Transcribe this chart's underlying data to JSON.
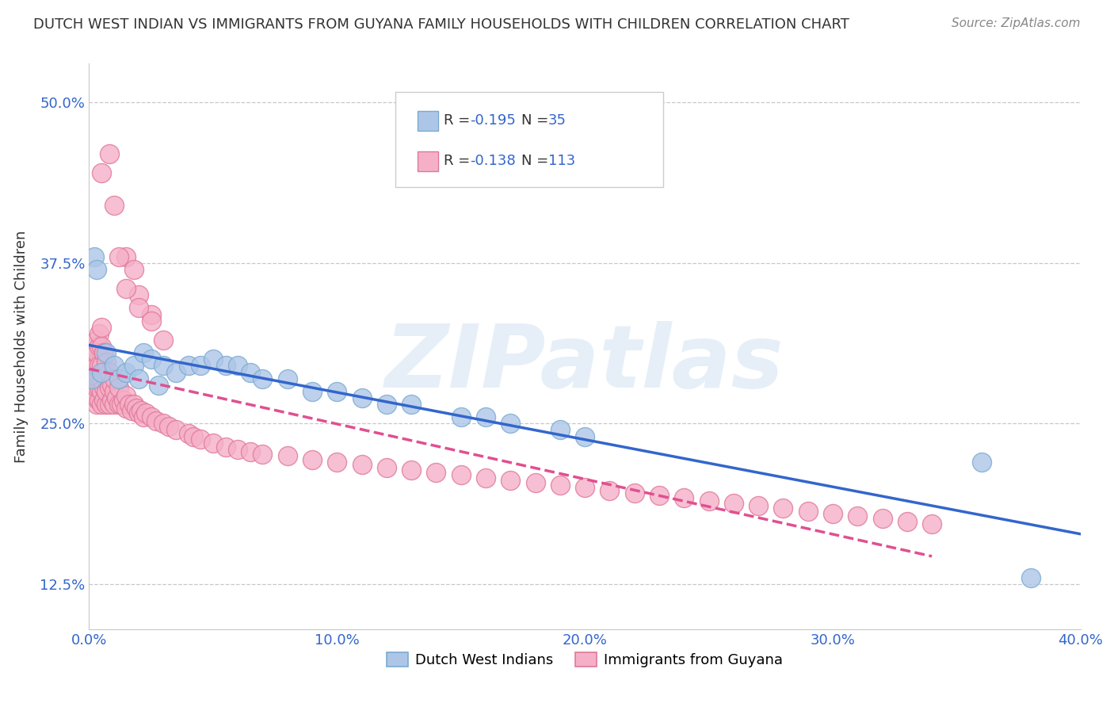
{
  "title": "DUTCH WEST INDIAN VS IMMIGRANTS FROM GUYANA FAMILY HOUSEHOLDS WITH CHILDREN CORRELATION CHART",
  "source": "Source: ZipAtlas.com",
  "ylabel": "Family Households with Children",
  "xlim": [
    0.0,
    0.4
  ],
  "ylim": [
    0.09,
    0.53
  ],
  "xticks": [
    0.0,
    0.1,
    0.2,
    0.3,
    0.4
  ],
  "xtick_labels": [
    "0.0%",
    "10.0%",
    "20.0%",
    "30.0%",
    "40.0%"
  ],
  "yticks": [
    0.125,
    0.25,
    0.375,
    0.5
  ],
  "ytick_labels": [
    "12.5%",
    "25.0%",
    "37.5%",
    "50.0%"
  ],
  "blue_color": "#adc6e8",
  "pink_color": "#f5b0c8",
  "blue_edge": "#7aaad0",
  "pink_edge": "#e07898",
  "trend_blue": "#3366cc",
  "trend_pink": "#e05090",
  "background": "#ffffff",
  "grid_color": "#c8c8c8",
  "axis_color": "#3366cc",
  "watermark": "ZIPatlas",
  "blue_x": [
    0.001,
    0.002,
    0.003,
    0.005,
    0.007,
    0.01,
    0.012,
    0.015,
    0.018,
    0.02,
    0.022,
    0.025,
    0.028,
    0.03,
    0.035,
    0.04,
    0.045,
    0.05,
    0.055,
    0.06,
    0.065,
    0.07,
    0.08,
    0.09,
    0.1,
    0.11,
    0.12,
    0.13,
    0.15,
    0.16,
    0.17,
    0.19,
    0.2,
    0.36,
    0.38
  ],
  "blue_y": [
    0.285,
    0.38,
    0.37,
    0.29,
    0.305,
    0.295,
    0.285,
    0.29,
    0.295,
    0.285,
    0.305,
    0.3,
    0.28,
    0.295,
    0.29,
    0.295,
    0.295,
    0.3,
    0.295,
    0.295,
    0.29,
    0.285,
    0.285,
    0.275,
    0.275,
    0.27,
    0.265,
    0.265,
    0.255,
    0.255,
    0.25,
    0.245,
    0.24,
    0.22,
    0.13
  ],
  "pink_x": [
    0.001,
    0.001,
    0.001,
    0.001,
    0.001,
    0.002,
    0.002,
    0.002,
    0.002,
    0.002,
    0.002,
    0.003,
    0.003,
    0.003,
    0.003,
    0.003,
    0.003,
    0.003,
    0.004,
    0.004,
    0.004,
    0.004,
    0.004,
    0.004,
    0.005,
    0.005,
    0.005,
    0.005,
    0.005,
    0.005,
    0.006,
    0.006,
    0.006,
    0.006,
    0.007,
    0.007,
    0.007,
    0.007,
    0.008,
    0.008,
    0.008,
    0.009,
    0.009,
    0.01,
    0.01,
    0.01,
    0.011,
    0.012,
    0.012,
    0.013,
    0.014,
    0.015,
    0.015,
    0.016,
    0.017,
    0.018,
    0.019,
    0.02,
    0.021,
    0.022,
    0.023,
    0.025,
    0.027,
    0.03,
    0.032,
    0.035,
    0.04,
    0.042,
    0.045,
    0.05,
    0.055,
    0.06,
    0.065,
    0.07,
    0.08,
    0.09,
    0.1,
    0.11,
    0.12,
    0.13,
    0.14,
    0.15,
    0.16,
    0.17,
    0.18,
    0.19,
    0.2,
    0.21,
    0.22,
    0.23,
    0.24,
    0.25,
    0.26,
    0.27,
    0.28,
    0.29,
    0.3,
    0.31,
    0.32,
    0.33,
    0.34,
    0.015,
    0.02,
    0.025,
    0.005,
    0.008,
    0.01,
    0.012,
    0.015,
    0.018,
    0.02,
    0.025,
    0.03
  ],
  "pink_y": [
    0.275,
    0.285,
    0.29,
    0.295,
    0.305,
    0.27,
    0.275,
    0.285,
    0.295,
    0.305,
    0.31,
    0.265,
    0.27,
    0.278,
    0.285,
    0.295,
    0.305,
    0.315,
    0.268,
    0.278,
    0.285,
    0.295,
    0.31,
    0.32,
    0.265,
    0.275,
    0.285,
    0.295,
    0.31,
    0.325,
    0.268,
    0.278,
    0.29,
    0.305,
    0.265,
    0.275,
    0.285,
    0.298,
    0.265,
    0.278,
    0.29,
    0.268,
    0.28,
    0.265,
    0.275,
    0.285,
    0.27,
    0.265,
    0.278,
    0.265,
    0.268,
    0.262,
    0.272,
    0.265,
    0.26,
    0.265,
    0.262,
    0.258,
    0.26,
    0.255,
    0.258,
    0.255,
    0.252,
    0.25,
    0.248,
    0.245,
    0.242,
    0.24,
    0.238,
    0.235,
    0.232,
    0.23,
    0.228,
    0.226,
    0.225,
    0.222,
    0.22,
    0.218,
    0.216,
    0.214,
    0.212,
    0.21,
    0.208,
    0.206,
    0.204,
    0.202,
    0.2,
    0.198,
    0.196,
    0.194,
    0.192,
    0.19,
    0.188,
    0.186,
    0.184,
    0.182,
    0.18,
    0.178,
    0.176,
    0.174,
    0.172,
    0.38,
    0.35,
    0.335,
    0.445,
    0.46,
    0.42,
    0.38,
    0.355,
    0.37,
    0.34,
    0.33,
    0.315
  ]
}
